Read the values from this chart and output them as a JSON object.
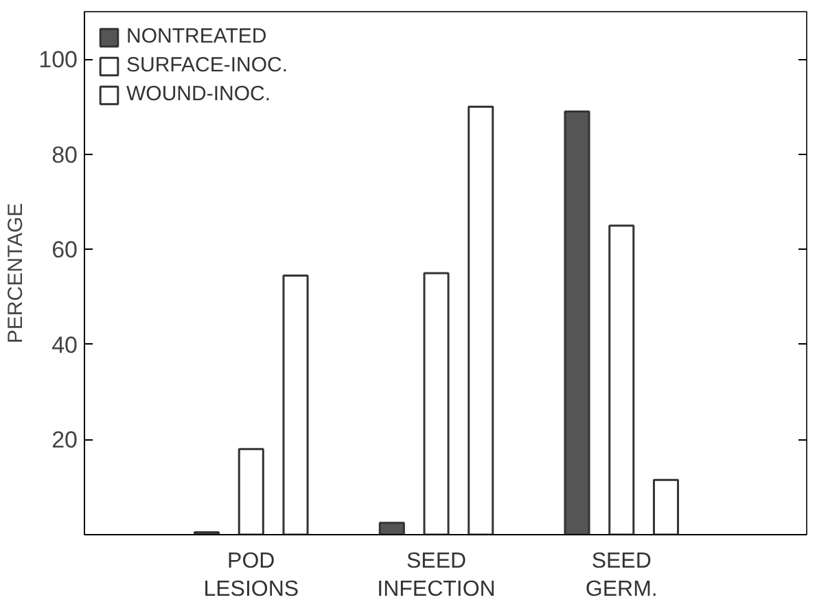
{
  "chart_data": {
    "type": "bar",
    "ylabel": "PERCENTAGE",
    "categories": [
      "POD\nLESIONS",
      "SEED\nINFECTION",
      "SEED\nGERM."
    ],
    "series": [
      {
        "name": "NONTREATED",
        "color": "#555555",
        "values": [
          0.5,
          2.5,
          89
        ]
      },
      {
        "name": "SURFACE-INOC.",
        "color": "#ffffff",
        "values": [
          18,
          55,
          65
        ]
      },
      {
        "name": "WOUND-INOC.",
        "color": "#ffffff",
        "values": [
          54.5,
          90,
          11.5
        ]
      }
    ],
    "ylim": [
      0,
      110
    ],
    "yticks": [
      20,
      40,
      60,
      80,
      100
    ],
    "grid": false,
    "legend": "top left"
  }
}
